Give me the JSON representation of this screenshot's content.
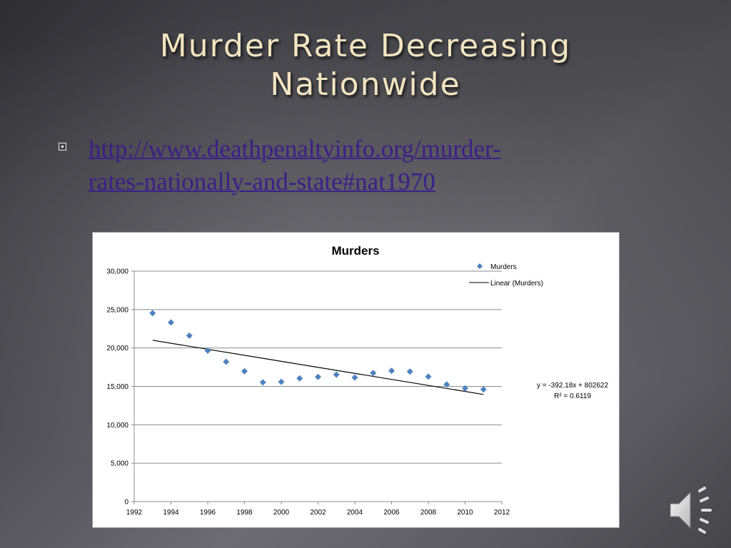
{
  "slide": {
    "title_line1": "Murder Rate Decreasing",
    "title_line2": "Nationwide",
    "link_line1": "http://www.deathpenaltyinfo.org/murder-",
    "link_line2": "rates-nationally-and-state#nat1970",
    "link_color": "#3a2088",
    "title_color": "#f2e4c0"
  },
  "audio": {
    "icon": "speaker-icon"
  },
  "chart_data": {
    "type": "scatter",
    "title": "Murders",
    "xlim": [
      1992,
      2012
    ],
    "ylim": [
      0,
      30000
    ],
    "xticks": [
      "1992",
      "1994",
      "1996",
      "1998",
      "2000",
      "2002",
      "2004",
      "2006",
      "2008",
      "2010",
      "2012"
    ],
    "yticks": [
      "0",
      "5,000",
      "10,000",
      "15,000",
      "20,000",
      "25,000",
      "30,000"
    ],
    "grid": true,
    "legend_position": "top-right",
    "series": [
      {
        "name": "Murders",
        "color": "#4f81bd",
        "x": [
          1993,
          1994,
          1995,
          1996,
          1997,
          1998,
          1999,
          2000,
          2001,
          2002,
          2003,
          2004,
          2005,
          2006,
          2007,
          2008,
          2009,
          2010,
          2011
        ],
        "y": [
          24530,
          23330,
          21610,
          19650,
          18210,
          16970,
          15520,
          15590,
          16040,
          16230,
          16530,
          16150,
          16740,
          17030,
          16930,
          16270,
          15240,
          14750,
          14610
        ]
      }
    ],
    "trendline": {
      "name": "Linear (Murders)",
      "slope": -392.18,
      "intercept": 802622,
      "x_range": [
        1993,
        2011
      ],
      "equation": "y = -392.18x + 802622",
      "r_squared": "R² = 0.6119"
    }
  }
}
